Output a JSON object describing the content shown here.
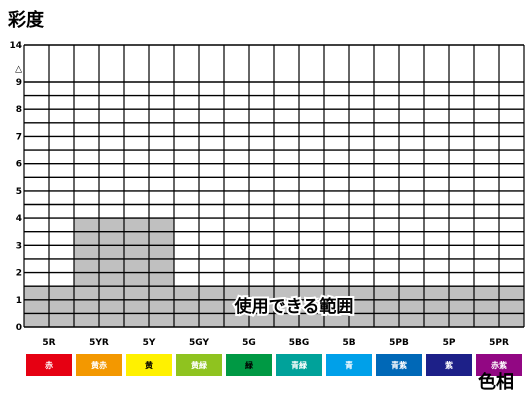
{
  "title_y": "彩度",
  "title_x": "色相",
  "chart_data": {
    "type": "heatmap",
    "y_axis": {
      "min": 0,
      "max": 14,
      "tick_labels": [
        "0",
        "1",
        "2",
        "3",
        "4",
        "5",
        "6",
        "7",
        "8",
        "9",
        "△",
        "14"
      ],
      "tick_values": [
        0,
        1,
        2,
        3,
        4,
        5,
        6,
        7,
        8,
        9,
        9.5,
        14
      ],
      "half_step_lines": true
    },
    "categories": [
      "5R",
      "5YR",
      "5Y",
      "5GY",
      "5G",
      "5BG",
      "5B",
      "5PB",
      "5P",
      "5PR"
    ],
    "series": [
      {
        "values": [
          1.5,
          4,
          4,
          1.5,
          1.5,
          1.5,
          1.5,
          1.5,
          1.5,
          1.5
        ]
      }
    ],
    "annotation": "使用できる範囲",
    "fill_color": "#c0c0c0",
    "hue_bar": [
      {
        "label": "赤",
        "color": "#e60012",
        "text_color": "#ffffff"
      },
      {
        "label": "黄赤",
        "color": "#f39800",
        "text_color": "#ffffff"
      },
      {
        "label": "黄",
        "color": "#fff100",
        "text_color": "#000000"
      },
      {
        "label": "黄緑",
        "color": "#8fc31f",
        "text_color": "#ffffff"
      },
      {
        "label": "緑",
        "color": "#009944",
        "text_color": "#000000"
      },
      {
        "label": "青緑",
        "color": "#00a29a",
        "text_color": "#ffffff"
      },
      {
        "label": "青",
        "color": "#00a0e9",
        "text_color": "#ffffff"
      },
      {
        "label": "青紫",
        "color": "#0068b7",
        "text_color": "#ffffff"
      },
      {
        "label": "紫",
        "color": "#1d2088",
        "text_color": "#ffffff"
      },
      {
        "label": "赤紫",
        "color": "#920783",
        "text_color": "#ffffff"
      }
    ]
  }
}
